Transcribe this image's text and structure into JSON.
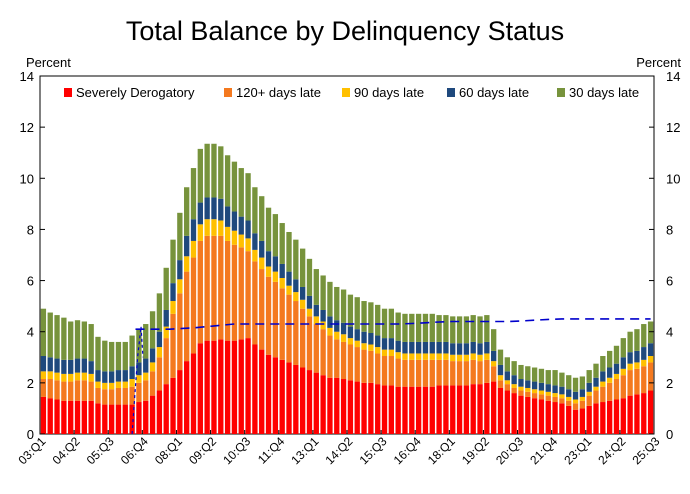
{
  "chart_data": {
    "type": "bar",
    "stacked": true,
    "title": "Total Balance by Delinquency Status",
    "ylabel_left": "Percent",
    "ylabel_right": "Percent",
    "ylim": [
      0,
      14
    ],
    "yticks": [
      0,
      2,
      4,
      6,
      8,
      10,
      12,
      14
    ],
    "grid": false,
    "legend_position": "top",
    "x_tick_labels": [
      "03:Q1",
      "04:Q2",
      "05:Q3",
      "06:Q4",
      "08:Q1",
      "09:Q2",
      "10:Q3",
      "11:Q4",
      "13:Q1",
      "14:Q2",
      "15:Q3",
      "16:Q4",
      "18:Q1",
      "19:Q2",
      "20:Q3",
      "21:Q4",
      "23:Q1",
      "24:Q2",
      "25:Q3"
    ],
    "x_tick_every": 5,
    "series": [
      {
        "name": "Severely Derogatory",
        "color": "#ff0000",
        "values": [
          1.45,
          1.4,
          1.35,
          1.3,
          1.3,
          1.3,
          1.3,
          1.3,
          1.2,
          1.15,
          1.15,
          1.15,
          1.15,
          1.15,
          1.25,
          1.3,
          1.5,
          1.7,
          1.95,
          2.2,
          2.5,
          2.85,
          3.15,
          3.55,
          3.65,
          3.65,
          3.7,
          3.65,
          3.65,
          3.7,
          3.75,
          3.5,
          3.3,
          3.1,
          3.0,
          2.9,
          2.8,
          2.7,
          2.6,
          2.5,
          2.4,
          2.3,
          2.2,
          2.2,
          2.15,
          2.1,
          2.05,
          2.0,
          2.0,
          1.95,
          1.9,
          1.9,
          1.85,
          1.85,
          1.85,
          1.85,
          1.85,
          1.85,
          1.9,
          1.9,
          1.9,
          1.9,
          1.9,
          1.95,
          1.95,
          2.0,
          2.05,
          1.8,
          1.7,
          1.6,
          1.5,
          1.45,
          1.4,
          1.35,
          1.3,
          1.25,
          1.2,
          1.1,
          0.95,
          1.0,
          1.1,
          1.2,
          1.25,
          1.3,
          1.35,
          1.4,
          1.5,
          1.55,
          1.6,
          1.7
        ]
      },
      {
        "name": "120+ days late",
        "color": "#f4791f",
        "values": [
          0.7,
          0.75,
          0.75,
          0.75,
          0.75,
          0.8,
          0.8,
          0.75,
          0.6,
          0.6,
          0.6,
          0.65,
          0.65,
          0.7,
          0.75,
          0.8,
          0.95,
          1.3,
          1.8,
          2.5,
          3.0,
          3.5,
          3.75,
          4.0,
          4.1,
          4.1,
          4.05,
          3.9,
          3.75,
          3.6,
          3.4,
          3.25,
          3.15,
          3.05,
          2.95,
          2.8,
          2.65,
          2.5,
          2.3,
          2.1,
          1.9,
          1.8,
          1.65,
          1.5,
          1.45,
          1.4,
          1.35,
          1.3,
          1.25,
          1.2,
          1.15,
          1.15,
          1.1,
          1.05,
          1.05,
          1.05,
          1.05,
          1.05,
          1.0,
          1.0,
          0.95,
          0.95,
          0.95,
          0.95,
          0.9,
          0.9,
          0.6,
          0.3,
          0.25,
          0.2,
          0.2,
          0.2,
          0.2,
          0.2,
          0.2,
          0.2,
          0.2,
          0.2,
          0.25,
          0.3,
          0.4,
          0.5,
          0.6,
          0.7,
          0.8,
          0.9,
          1.0,
          1.0,
          1.05,
          1.1
        ]
      },
      {
        "name": "90 days late",
        "color": "#ffc000",
        "values": [
          0.3,
          0.3,
          0.3,
          0.3,
          0.3,
          0.3,
          0.3,
          0.3,
          0.25,
          0.25,
          0.25,
          0.25,
          0.25,
          0.3,
          0.3,
          0.3,
          0.35,
          0.4,
          0.45,
          0.5,
          0.55,
          0.6,
          0.65,
          0.65,
          0.65,
          0.65,
          0.6,
          0.55,
          0.55,
          0.5,
          0.5,
          0.45,
          0.45,
          0.4,
          0.4,
          0.4,
          0.35,
          0.35,
          0.35,
          0.3,
          0.3,
          0.3,
          0.3,
          0.3,
          0.3,
          0.25,
          0.25,
          0.25,
          0.25,
          0.25,
          0.25,
          0.25,
          0.25,
          0.25,
          0.25,
          0.25,
          0.25,
          0.25,
          0.25,
          0.25,
          0.25,
          0.25,
          0.25,
          0.25,
          0.25,
          0.25,
          0.2,
          0.2,
          0.15,
          0.15,
          0.15,
          0.15,
          0.15,
          0.15,
          0.15,
          0.15,
          0.15,
          0.15,
          0.15,
          0.15,
          0.15,
          0.15,
          0.2,
          0.2,
          0.2,
          0.25,
          0.25,
          0.25,
          0.25,
          0.25
        ]
      },
      {
        "name": "60 days late",
        "color": "#1f497d",
        "values": [
          0.6,
          0.55,
          0.55,
          0.55,
          0.55,
          0.55,
          0.55,
          0.5,
          0.45,
          0.45,
          0.45,
          0.45,
          0.45,
          0.5,
          0.5,
          0.55,
          0.55,
          0.6,
          0.65,
          0.7,
          0.75,
          0.8,
          0.85,
          0.85,
          0.85,
          0.85,
          0.85,
          0.8,
          0.75,
          0.7,
          0.7,
          0.65,
          0.65,
          0.6,
          0.6,
          0.55,
          0.55,
          0.5,
          0.5,
          0.5,
          0.45,
          0.45,
          0.45,
          0.45,
          0.45,
          0.45,
          0.45,
          0.45,
          0.45,
          0.45,
          0.45,
          0.45,
          0.45,
          0.45,
          0.45,
          0.45,
          0.45,
          0.45,
          0.45,
          0.45,
          0.45,
          0.45,
          0.45,
          0.45,
          0.45,
          0.45,
          0.4,
          0.4,
          0.35,
          0.35,
          0.3,
          0.3,
          0.3,
          0.3,
          0.3,
          0.3,
          0.3,
          0.3,
          0.3,
          0.3,
          0.35,
          0.35,
          0.4,
          0.4,
          0.4,
          0.45,
          0.45,
          0.45,
          0.5,
          0.5
        ]
      },
      {
        "name": "30 days late",
        "color": "#77933c",
        "values": [
          1.85,
          1.75,
          1.7,
          1.65,
          1.5,
          1.5,
          1.45,
          1.45,
          1.3,
          1.2,
          1.15,
          1.1,
          1.1,
          1.2,
          1.3,
          1.35,
          1.45,
          1.5,
          1.65,
          1.7,
          1.85,
          1.9,
          2.0,
          2.1,
          2.1,
          2.1,
          2.05,
          2.0,
          1.95,
          1.9,
          1.85,
          1.8,
          1.75,
          1.7,
          1.65,
          1.6,
          1.55,
          1.55,
          1.5,
          1.45,
          1.4,
          1.35,
          1.35,
          1.3,
          1.3,
          1.25,
          1.25,
          1.2,
          1.2,
          1.2,
          1.15,
          1.15,
          1.1,
          1.1,
          1.1,
          1.1,
          1.1,
          1.1,
          1.05,
          1.05,
          1.05,
          1.05,
          1.05,
          1.05,
          1.05,
          1.05,
          0.85,
          0.6,
          0.55,
          0.55,
          0.55,
          0.55,
          0.55,
          0.55,
          0.55,
          0.6,
          0.55,
          0.55,
          0.55,
          0.5,
          0.5,
          0.55,
          0.6,
          0.65,
          0.7,
          0.75,
          0.8,
          0.85,
          0.9,
          0.85
        ]
      }
    ],
    "overlay_line": {
      "color": "#0000cc",
      "style": "dashed",
      "x_index": [
        13.5,
        14.5,
        15.5,
        16.5,
        17.5,
        18.5,
        20,
        22,
        24,
        26,
        28,
        30,
        32,
        34,
        36,
        38,
        40,
        42,
        44,
        46,
        48,
        50,
        52,
        54,
        56,
        58,
        60,
        62,
        64,
        66,
        68,
        70,
        72,
        74,
        76,
        78,
        80,
        82,
        84,
        86,
        88,
        89
      ],
      "values": [
        4.1,
        4.1,
        4.1,
        4.1,
        4.1,
        4.1,
        4.12,
        4.15,
        4.2,
        4.25,
        4.3,
        4.3,
        4.3,
        4.3,
        4.3,
        4.3,
        4.3,
        4.3,
        4.3,
        4.3,
        4.3,
        4.3,
        4.3,
        4.32,
        4.35,
        4.38,
        4.4,
        4.4,
        4.4,
        4.4,
        4.4,
        4.42,
        4.45,
        4.48,
        4.5,
        4.5,
        4.5,
        4.5,
        4.5,
        4.5,
        4.5,
        4.5
      ]
    },
    "overlay_segment": {
      "x_index": [
        13.0,
        13.4,
        13.8,
        14.3,
        14.6
      ],
      "values": [
        0.0,
        1.5,
        3.0,
        4.2,
        3.0
      ]
    }
  }
}
